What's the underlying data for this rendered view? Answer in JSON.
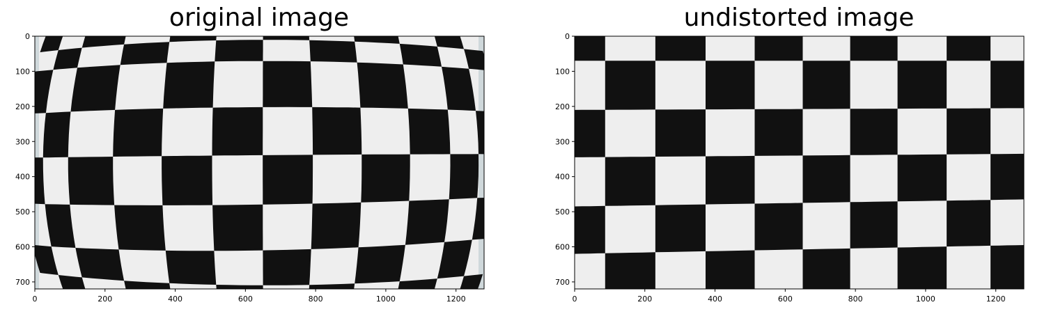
{
  "colors": {
    "square_dark": "#111111",
    "square_light": "#eeeeee",
    "frame": "#000000",
    "paper_edge": "#cfd8db",
    "tick_text": "#000000"
  },
  "panels": [
    {
      "title": "original image",
      "x_ticks": [
        "0",
        "200",
        "400",
        "600",
        "800",
        "1000",
        "1200"
      ],
      "y_ticks": [
        "0",
        "100",
        "200",
        "300",
        "400",
        "500",
        "600",
        "700"
      ],
      "x_limit": [
        0,
        1280
      ],
      "y_limit": [
        720,
        0
      ],
      "image": "distorted checkerboard"
    },
    {
      "title": "undistorted image",
      "x_ticks": [
        "0",
        "200",
        "400",
        "600",
        "800",
        "1000",
        "1200"
      ],
      "y_ticks": [
        "0",
        "100",
        "200",
        "300",
        "400",
        "500",
        "600",
        "700"
      ],
      "x_limit": [
        0,
        1280
      ],
      "y_limit": [
        720,
        0
      ],
      "image": "undistorted checkerboard"
    }
  ]
}
